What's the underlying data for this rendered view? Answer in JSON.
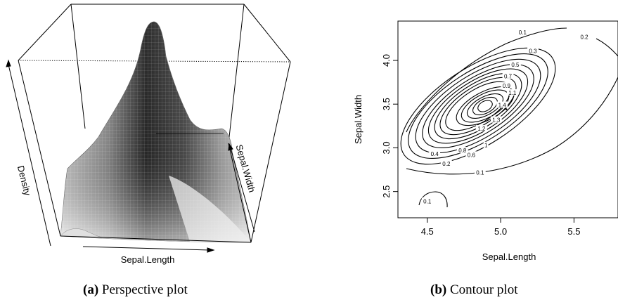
{
  "captions": {
    "a_tag": "(a)",
    "a_text": "Perspective plot",
    "b_tag": "(b)",
    "b_text": "Contour plot"
  },
  "chart_data": [
    {
      "type": "surface",
      "xlabel": "Sepal.Length",
      "ylabel": "Sepal.Width",
      "zlabel": "Density"
    },
    {
      "type": "contour",
      "xlabel": "Sepal.Length",
      "ylabel": "Sepal.Width",
      "xlim": [
        4.3,
        5.8
      ],
      "ylim": [
        2.2,
        4.45
      ],
      "xticks": [
        "4.5",
        "5.0",
        "5.5"
      ],
      "yticks": [
        "2.5",
        "3.0",
        "3.5",
        "4.0"
      ],
      "contour_labels": [
        {
          "text": "0.1",
          "x": 5.15,
          "y": 4.32
        },
        {
          "text": "0.2",
          "x": 5.57,
          "y": 4.27
        },
        {
          "text": "0.3",
          "x": 5.22,
          "y": 4.11
        },
        {
          "text": "0.5",
          "x": 5.1,
          "y": 3.95
        },
        {
          "text": "0.7",
          "x": 5.05,
          "y": 3.82
        },
        {
          "text": "0.9",
          "x": 5.04,
          "y": 3.71
        },
        {
          "text": "1.1",
          "x": 5.08,
          "y": 3.63
        },
        {
          "text": "1.4",
          "x": 5.01,
          "y": 3.49
        },
        {
          "text": "1.3",
          "x": 4.97,
          "y": 3.32
        },
        {
          "text": "1.2",
          "x": 4.87,
          "y": 3.22
        },
        {
          "text": "1",
          "x": 4.9,
          "y": 3.03
        },
        {
          "text": "0.8",
          "x": 4.74,
          "y": 2.97
        },
        {
          "text": "0.6",
          "x": 4.8,
          "y": 2.92
        },
        {
          "text": "0.4",
          "x": 4.55,
          "y": 2.93
        },
        {
          "text": "0.2",
          "x": 4.63,
          "y": 2.82
        },
        {
          "text": "0.1",
          "x": 4.86,
          "y": 2.72
        },
        {
          "text": "0.1",
          "x": 4.5,
          "y": 2.39
        }
      ]
    }
  ]
}
